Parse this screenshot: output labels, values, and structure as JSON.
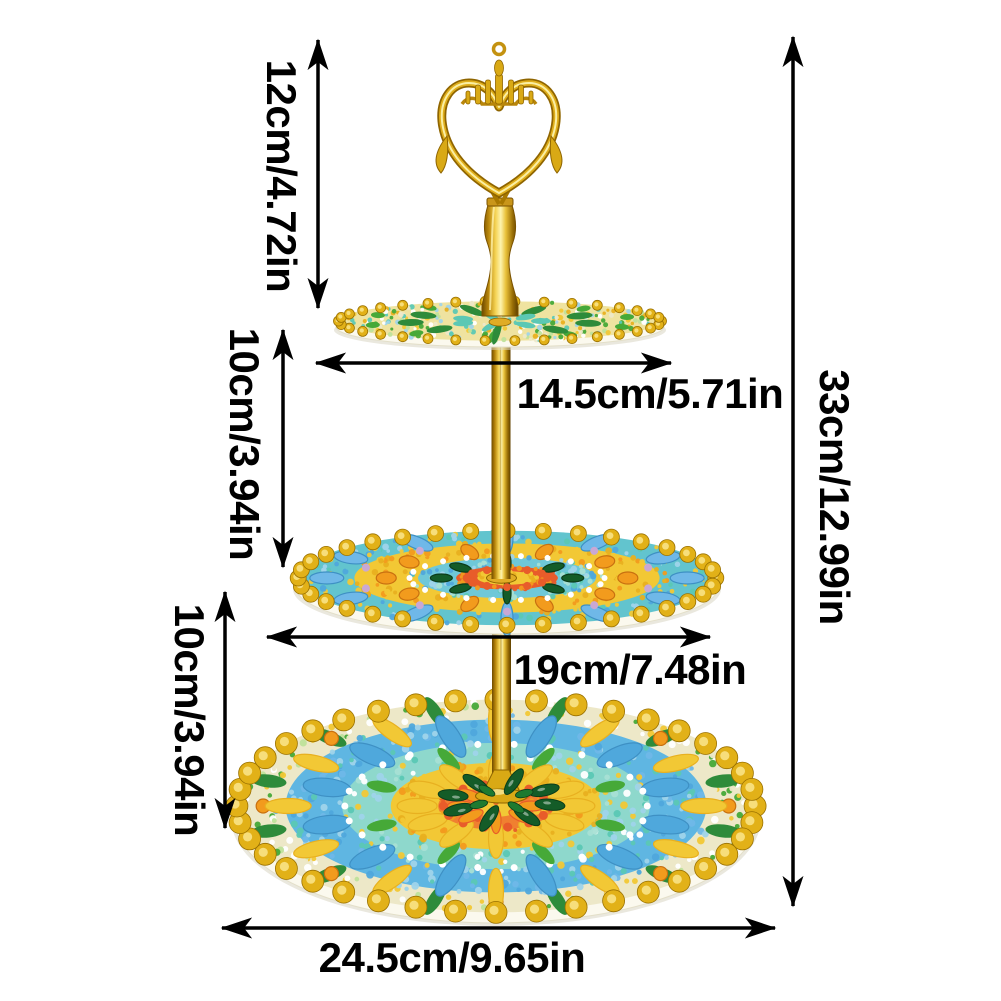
{
  "dimensions": {
    "handle_height": "12cm/4.72in",
    "upper_tier_gap": "10cm/3.94in",
    "lower_tier_gap": "10cm/3.94in",
    "top_tray_diameter": "14.5cm/5.71in",
    "middle_tray_diameter": "19cm/7.48in",
    "bottom_tray_diameter": "24.5cm/9.65in",
    "total_height": "33cm/12.99in"
  },
  "palette": {
    "background": "#FFFFFF",
    "arrow": "#000000",
    "label": "#000000",
    "gold": "#D9A915",
    "goldDark": "#8F6500",
    "goldDeep": "#B8860B",
    "goldPale": "#F7DE7B",
    "yellow": "#F2C835",
    "yellowDeep": "#E8B020",
    "cream": "#EDE8C8",
    "white": "#FFFFFF",
    "lightGreen": "#BFE29B",
    "green": "#46A938",
    "leafGreen": "#2E8B3A",
    "gemGreen": "#145C28",
    "blue": "#4FA8DC",
    "skyBlue": "#6FB8E8",
    "lightBlue": "#9FD4EA",
    "teal": "#5BC8B4",
    "paleTeal": "#A8E0D4",
    "aqua": "#62C4CE",
    "orange": "#F29B1D",
    "orangeDeep": "#C87010",
    "red": "#E85C2A",
    "lilac": "#C9A8D4",
    "rim": "#FBF9EE",
    "rimEdge": "#E3DFC9",
    "shadow": "#D9D5C2"
  }
}
